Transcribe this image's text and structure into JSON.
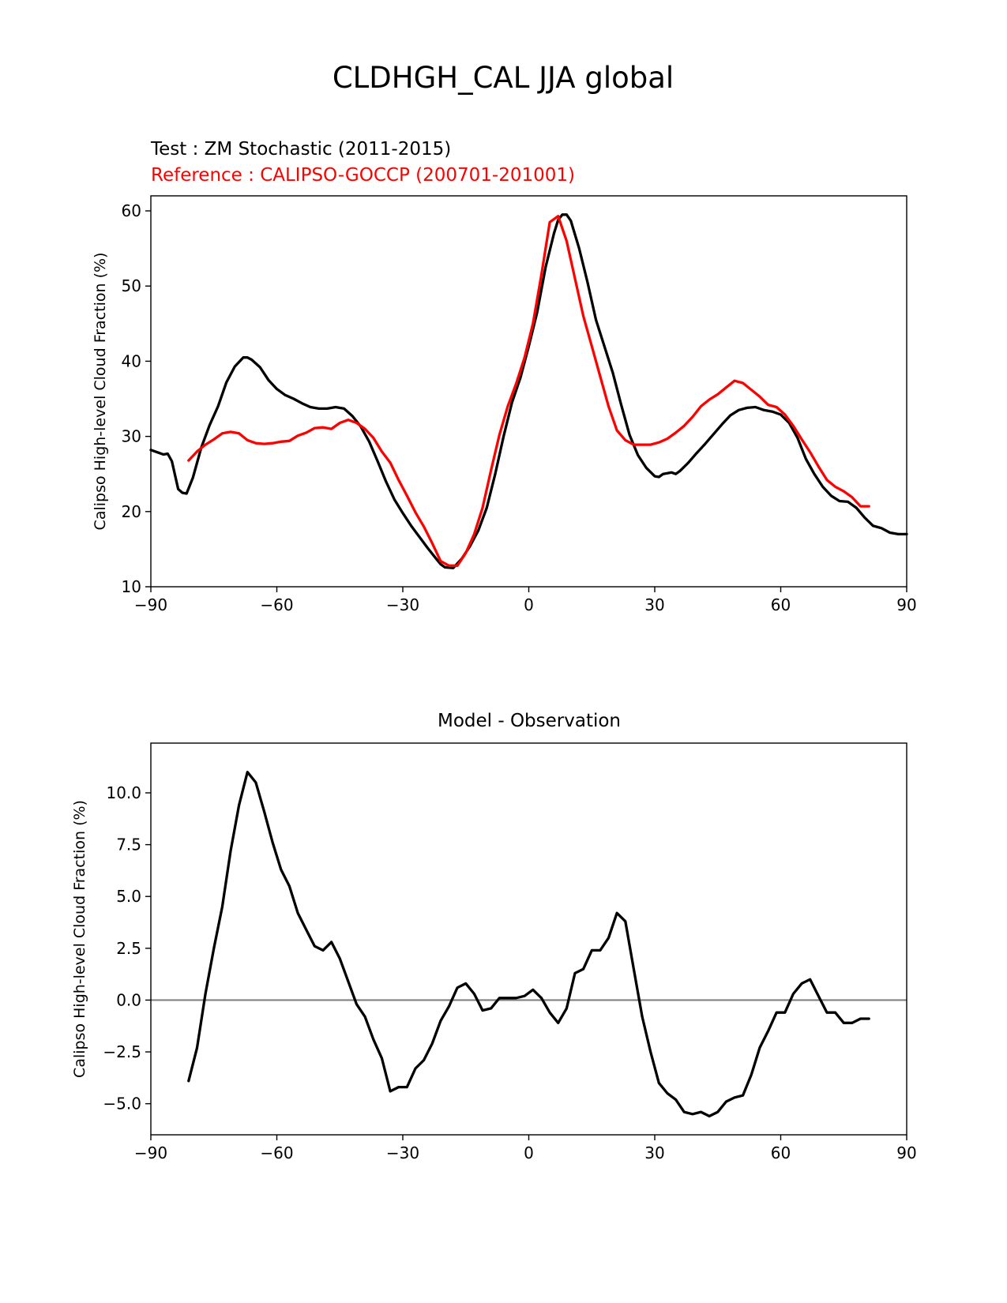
{
  "figure": {
    "suptitle": "CLDHGH_CAL JJA global"
  },
  "chart_data": [
    {
      "type": "line",
      "test_label": "Test : ZM Stochastic (2011-2015)",
      "reference_label": "Reference : CALIPSO-GOCCP (200701-201001)",
      "xlabel": "",
      "ylabel": "Calipso High-level Cloud Fraction (%)",
      "xlim": [
        -90,
        90
      ],
      "ylim": [
        10,
        62
      ],
      "xticks": [
        -90,
        -60,
        -30,
        0,
        30,
        60,
        90
      ],
      "xtick_labels": [
        "−90",
        "−60",
        "−30",
        "0",
        "30",
        "60",
        "90"
      ],
      "yticks": [
        10,
        20,
        30,
        40,
        50,
        60
      ],
      "ytick_labels": [
        "10",
        "20",
        "30",
        "40",
        "50",
        "60"
      ],
      "grid": false,
      "colors": {
        "test": "#000000",
        "reference": "#ff0000"
      },
      "series": [
        {
          "role": "test",
          "x": [
            -90,
            -88,
            -87,
            -86,
            -85,
            -83.5,
            -82.5,
            -81.5,
            -80,
            -78,
            -76,
            -74,
            -72,
            -70,
            -68,
            -67,
            -66,
            -64,
            -62,
            -60,
            -58,
            -56,
            -54,
            -52,
            -50,
            -48,
            -46,
            -44,
            -42,
            -40,
            -38,
            -36,
            -34,
            -32,
            -30,
            -28,
            -26,
            -24,
            -22,
            -21,
            -20,
            -18,
            -16,
            -14,
            -12,
            -10,
            -8,
            -6,
            -4,
            -2,
            0,
            2,
            4,
            6,
            7,
            8,
            9,
            10,
            12,
            14,
            16,
            18,
            20,
            22,
            24,
            26,
            28,
            30,
            31,
            32,
            33,
            34,
            35,
            36,
            38,
            40,
            42,
            44,
            46,
            48,
            50,
            52,
            54,
            56,
            58,
            60,
            62,
            64,
            66,
            68,
            70,
            72,
            74,
            76,
            78,
            80,
            82,
            84,
            86,
            88,
            90
          ],
          "values": [
            28.2,
            27.8,
            27.6,
            27.7,
            26.7,
            23.0,
            22.5,
            22.4,
            24.5,
            28.5,
            31.5,
            34.0,
            37.2,
            39.3,
            40.5,
            40.5,
            40.2,
            39.2,
            37.5,
            36.3,
            35.5,
            35.0,
            34.4,
            33.9,
            33.7,
            33.7,
            33.9,
            33.7,
            32.7,
            31.3,
            29.3,
            26.7,
            24.0,
            21.6,
            19.8,
            18.1,
            16.6,
            15.1,
            13.7,
            13.0,
            12.6,
            12.5,
            13.7,
            15.4,
            17.5,
            20.5,
            25.0,
            30.0,
            34.5,
            37.8,
            42.0,
            46.5,
            52.5,
            57.0,
            58.8,
            59.5,
            59.5,
            58.7,
            55.0,
            50.5,
            45.5,
            42.0,
            38.5,
            34.2,
            30.2,
            27.5,
            25.8,
            24.7,
            24.6,
            25.0,
            25.1,
            25.2,
            25.0,
            25.4,
            26.5,
            27.8,
            29.0,
            30.3,
            31.6,
            32.8,
            33.5,
            33.8,
            33.9,
            33.5,
            33.3,
            32.9,
            31.8,
            29.8,
            27.0,
            25.0,
            23.3,
            22.1,
            21.4,
            21.3,
            20.5,
            19.2,
            18.1,
            17.8,
            17.2,
            17.0,
            17.0
          ]
        },
        {
          "role": "reference",
          "x": [
            -81,
            -79,
            -77,
            -75,
            -73,
            -71,
            -69,
            -67,
            -65,
            -63,
            -61,
            -59,
            -57,
            -55,
            -53,
            -51,
            -49,
            -47,
            -45,
            -43,
            -41,
            -39,
            -37,
            -35,
            -33,
            -31,
            -29,
            -27,
            -25,
            -23,
            -21,
            -19,
            -17,
            -15,
            -13,
            -11,
            -9,
            -7,
            -5,
            -3,
            -1,
            1,
            3,
            5,
            7,
            9,
            11,
            13,
            15,
            17,
            19,
            21,
            23,
            25,
            27,
            29,
            31,
            33,
            35,
            37,
            39,
            41,
            43,
            45,
            47,
            49,
            51,
            53,
            55,
            57,
            59,
            61,
            63,
            65,
            67,
            69,
            71,
            73,
            75,
            77,
            79,
            81
          ],
          "values": [
            26.8,
            28.0,
            28.9,
            29.6,
            30.4,
            30.6,
            30.4,
            29.5,
            29.1,
            29.0,
            29.1,
            29.3,
            29.4,
            30.1,
            30.5,
            31.1,
            31.2,
            31.0,
            31.8,
            32.2,
            31.8,
            31.0,
            29.8,
            28.0,
            26.5,
            24.2,
            22.1,
            19.9,
            18.0,
            15.8,
            13.4,
            12.8,
            12.8,
            14.5,
            17.0,
            20.5,
            25.5,
            30.2,
            34.0,
            37.0,
            40.5,
            45.0,
            51.5,
            58.5,
            59.3,
            56.0,
            51.0,
            46.0,
            42.0,
            38.0,
            34.0,
            30.8,
            29.5,
            28.9,
            28.9,
            28.9,
            29.2,
            29.7,
            30.5,
            31.4,
            32.6,
            34.0,
            34.9,
            35.6,
            36.5,
            37.4,
            37.1,
            36.2,
            35.3,
            34.2,
            33.9,
            32.9,
            31.4,
            29.6,
            27.9,
            26.0,
            24.2,
            23.3,
            22.7,
            21.9,
            20.7,
            20.7
          ]
        }
      ]
    },
    {
      "type": "line",
      "title": "Model - Observation",
      "xlabel": "",
      "ylabel": "Calipso High-level Cloud Fraction (%)",
      "xlim": [
        -90,
        90
      ],
      "ylim": [
        -6.5,
        12.4
      ],
      "xticks": [
        -90,
        -60,
        -30,
        0,
        30,
        60,
        90
      ],
      "xtick_labels": [
        "−90",
        "−60",
        "−30",
        "0",
        "30",
        "60",
        "90"
      ],
      "yticks": [
        -5.0,
        -2.5,
        0.0,
        2.5,
        5.0,
        7.5,
        10.0
      ],
      "ytick_labels": [
        "−5.0",
        "−2.5",
        "0.0",
        "2.5",
        "5.0",
        "7.5",
        "10.0"
      ],
      "grid": false,
      "zero_line": {
        "y": 0,
        "color": "#808080"
      },
      "colors": {
        "diff": "#000000"
      },
      "series": [
        {
          "role": "difference",
          "x": [
            -81,
            -79,
            -77,
            -75,
            -73,
            -71,
            -69,
            -67,
            -65,
            -63,
            -61,
            -59,
            -57,
            -55,
            -53,
            -51,
            -49,
            -47,
            -45,
            -43,
            -41,
            -39,
            -37,
            -35,
            -33,
            -31,
            -29,
            -27,
            -25,
            -23,
            -21,
            -19,
            -17,
            -15,
            -13,
            -11,
            -9,
            -7,
            -5,
            -3,
            -1,
            1,
            3,
            5,
            7,
            9,
            11,
            13,
            15,
            17,
            19,
            21,
            23,
            25,
            27,
            29,
            31,
            33,
            35,
            37,
            39,
            41,
            43,
            45,
            47,
            49,
            51,
            53,
            55,
            57,
            59,
            61,
            63,
            65,
            67,
            69,
            71,
            73,
            75,
            77,
            79,
            81
          ],
          "values": [
            -3.9,
            -2.3,
            0.3,
            2.5,
            4.5,
            7.2,
            9.4,
            11.0,
            10.5,
            9.1,
            7.6,
            6.3,
            5.5,
            4.2,
            3.4,
            2.6,
            2.4,
            2.8,
            2.0,
            0.9,
            -0.2,
            -0.8,
            -1.9,
            -2.8,
            -4.4,
            -4.2,
            -4.2,
            -3.3,
            -2.9,
            -2.1,
            -1.0,
            -0.3,
            0.6,
            0.8,
            0.3,
            -0.5,
            -0.4,
            0.1,
            0.1,
            0.1,
            0.2,
            0.5,
            0.1,
            -0.6,
            -1.1,
            -0.4,
            1.3,
            1.5,
            2.4,
            2.4,
            3.0,
            4.2,
            3.8,
            1.5,
            -0.8,
            -2.5,
            -4.0,
            -4.5,
            -4.8,
            -5.4,
            -5.5,
            -5.4,
            -5.6,
            -5.4,
            -4.9,
            -4.7,
            -4.6,
            -3.6,
            -2.3,
            -1.5,
            -0.6,
            -0.6,
            0.3,
            0.8,
            1.0,
            0.2,
            -0.6,
            -0.6,
            -1.1,
            -1.1,
            -0.9,
            -0.9
          ]
        }
      ]
    }
  ]
}
